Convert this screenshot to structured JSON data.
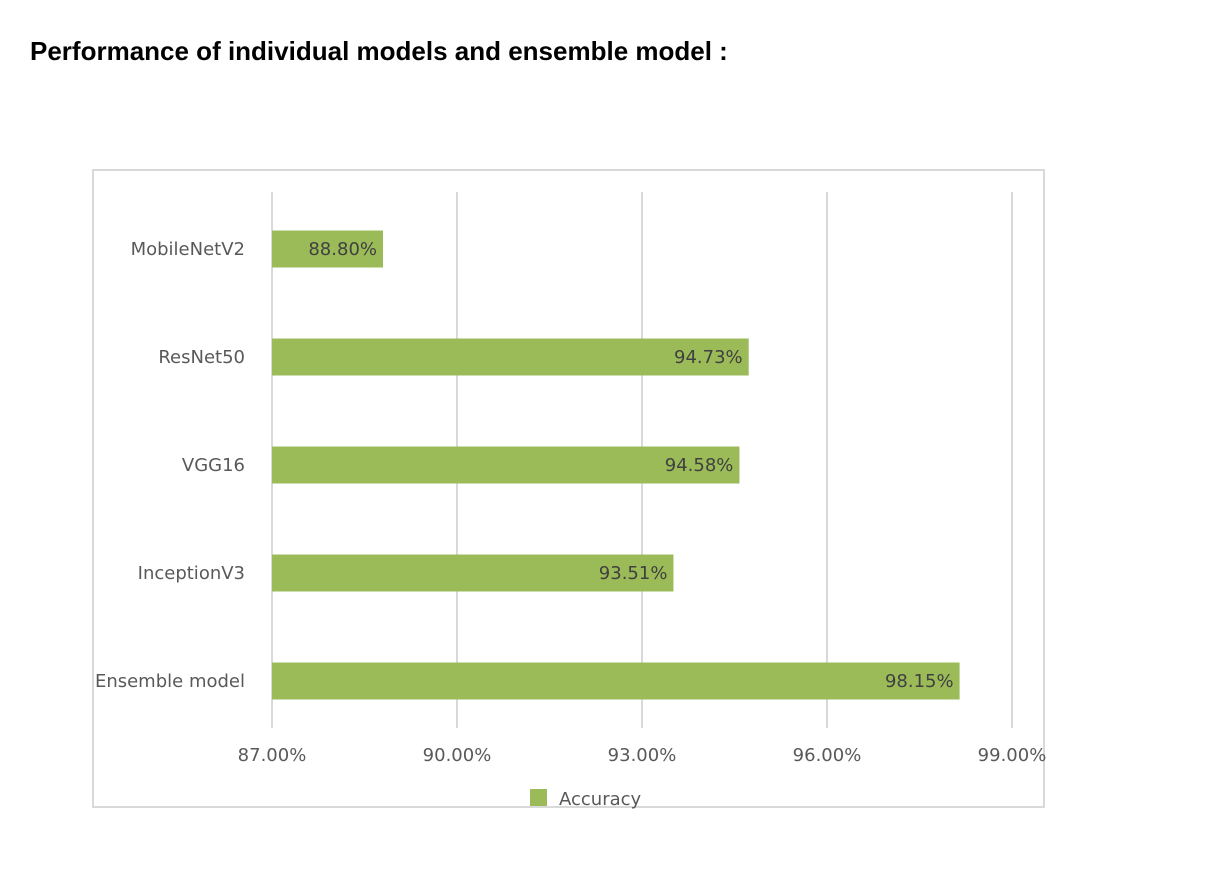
{
  "heading": "Performance of individual models and ensemble model :",
  "chart_data": {
    "type": "bar",
    "orientation": "horizontal",
    "categories": [
      "MobileNetV2",
      "ResNet50",
      "VGG16",
      "InceptionV3",
      "Ensemble model"
    ],
    "series": [
      {
        "name": "Accuracy",
        "values": [
          88.8,
          94.73,
          94.58,
          93.51,
          98.15
        ],
        "labels": [
          "88.80%",
          "94.73%",
          "94.58%",
          "93.51%",
          "98.15%"
        ],
        "color": "#9bbb59"
      }
    ],
    "xlim": [
      87,
      99
    ],
    "xticks": [
      87,
      90,
      93,
      96,
      99
    ],
    "xtick_labels": [
      "87.00%",
      "90.00%",
      "93.00%",
      "96.00%",
      "99.00%"
    ],
    "grid": true,
    "legend_position": "bottom",
    "gridline_color": "#d9d9d9",
    "axis_text_color": "#595959"
  }
}
